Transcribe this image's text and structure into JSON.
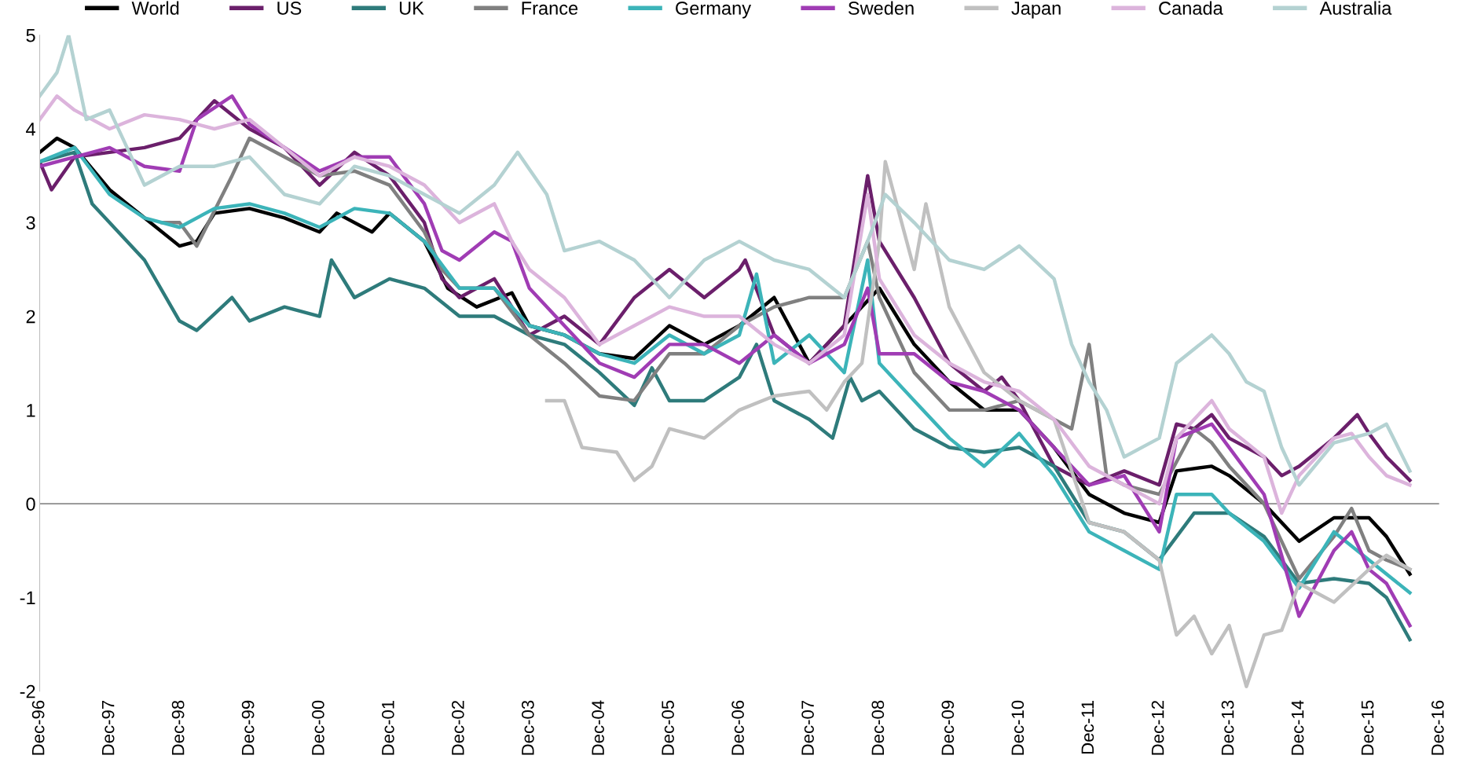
{
  "chart_data": {
    "type": "line",
    "legend": "top",
    "grid": false,
    "line_style": "solid",
    "marker": "none",
    "xlim": [
      "1996-12",
      "2016-12"
    ],
    "xticks": [
      {
        "value": "1996-12",
        "label": "Dec-96"
      },
      {
        "value": "1997-12",
        "label": "Dec-97"
      },
      {
        "value": "1998-12",
        "label": "Dec-98"
      },
      {
        "value": "1999-12",
        "label": "Dec-99"
      },
      {
        "value": "2000-12",
        "label": "Dec-00"
      },
      {
        "value": "2001-12",
        "label": "Dec-01"
      },
      {
        "value": "2002-12",
        "label": "Dec-02"
      },
      {
        "value": "2003-12",
        "label": "Dec-03"
      },
      {
        "value": "2004-12",
        "label": "Dec-04"
      },
      {
        "value": "2005-12",
        "label": "Dec-05"
      },
      {
        "value": "2006-12",
        "label": "Dec-06"
      },
      {
        "value": "2007-12",
        "label": "Dec-07"
      },
      {
        "value": "2008-12",
        "label": "Dec-08"
      },
      {
        "value": "2009-12",
        "label": "Dec-09"
      },
      {
        "value": "2010-12",
        "label": "Dec-10"
      },
      {
        "value": "2011-12",
        "label": "Dec-11"
      },
      {
        "value": "2012-12",
        "label": "Dec-12"
      },
      {
        "value": "2013-12",
        "label": "Dec-13"
      },
      {
        "value": "2014-12",
        "label": "Dec-14"
      },
      {
        "value": "2015-12",
        "label": "Dec-15"
      },
      {
        "value": "2016-12",
        "label": "Dec-16"
      }
    ],
    "ref_lines": [
      {
        "axis": "y",
        "value": 0,
        "color": "#8c8c8c"
      }
    ],
    "ylim": [
      -2,
      5
    ],
    "yticks": [
      -2,
      -1,
      0,
      1,
      2,
      3,
      4,
      5
    ],
    "series": [
      {
        "name": "World",
        "color": "#000000",
        "x": [
          "1996-12",
          "1997-03",
          "1997-06",
          "1997-12",
          "1998-06",
          "1998-12",
          "1999-03",
          "1999-06",
          "1999-12",
          "2000-06",
          "2000-12",
          "2001-03",
          "2001-09",
          "2001-12",
          "2002-06",
          "2002-10",
          "2003-03",
          "2003-09",
          "2003-12",
          "2004-06",
          "2004-12",
          "2005-06",
          "2005-12",
          "2006-06",
          "2006-12",
          "2007-06",
          "2007-12",
          "2008-06",
          "2008-12",
          "2009-06",
          "2009-12",
          "2010-06",
          "2010-12",
          "2011-06",
          "2011-12",
          "2012-06",
          "2012-12",
          "2013-03",
          "2013-09",
          "2013-12",
          "2014-06",
          "2014-12",
          "2015-06",
          "2015-12",
          "2016-03",
          "2016-07"
        ],
        "values": [
          3.75,
          3.9,
          3.8,
          3.35,
          3.05,
          2.75,
          2.8,
          3.1,
          3.15,
          3.05,
          2.9,
          3.1,
          2.9,
          3.1,
          2.8,
          2.3,
          2.1,
          2.25,
          1.9,
          1.8,
          1.6,
          1.55,
          1.9,
          1.7,
          1.9,
          2.2,
          1.5,
          1.9,
          2.3,
          1.7,
          1.3,
          1.0,
          1.0,
          0.6,
          0.1,
          -0.1,
          -0.2,
          0.35,
          0.4,
          0.3,
          0.0,
          -0.4,
          -0.15,
          -0.15,
          -0.35,
          -0.75
        ]
      },
      {
        "name": "US",
        "color": "#6b1f6b",
        "x": [
          "1996-12",
          "1997-02",
          "1997-06",
          "1997-12",
          "1998-06",
          "1998-12",
          "1999-06",
          "1999-12",
          "2000-06",
          "2000-12",
          "2001-06",
          "2001-12",
          "2002-06",
          "2002-09",
          "2002-12",
          "2003-06",
          "2003-12",
          "2004-06",
          "2004-12",
          "2005-06",
          "2005-12",
          "2006-06",
          "2006-12",
          "2007-01",
          "2007-06",
          "2007-12",
          "2008-06",
          "2008-10",
          "2008-12",
          "2009-06",
          "2009-12",
          "2010-06",
          "2010-09",
          "2010-12",
          "2011-06",
          "2011-12",
          "2012-06",
          "2012-12",
          "2013-03",
          "2013-06",
          "2013-09",
          "2013-12",
          "2014-06",
          "2014-09",
          "2014-12",
          "2015-06",
          "2015-10",
          "2015-12",
          "2016-03",
          "2016-07"
        ],
        "values": [
          3.65,
          3.35,
          3.7,
          3.75,
          3.8,
          3.9,
          4.3,
          4.0,
          3.8,
          3.4,
          3.75,
          3.5,
          3.0,
          2.4,
          2.2,
          2.4,
          1.8,
          2.0,
          1.7,
          2.2,
          2.5,
          2.2,
          2.5,
          2.6,
          1.8,
          1.5,
          1.9,
          3.5,
          2.8,
          2.2,
          1.5,
          1.2,
          1.35,
          1.1,
          0.4,
          0.2,
          0.35,
          0.2,
          0.85,
          0.8,
          0.95,
          0.7,
          0.5,
          0.3,
          0.4,
          0.7,
          0.95,
          0.75,
          0.5,
          0.25
        ]
      },
      {
        "name": "UK",
        "color": "#2e7b7b",
        "x": [
          "1996-12",
          "1997-06",
          "1997-09",
          "1998-06",
          "1998-12",
          "1999-03",
          "1999-09",
          "1999-12",
          "2000-06",
          "2000-12",
          "2001-02",
          "2001-06",
          "2001-12",
          "2002-06",
          "2002-12",
          "2003-06",
          "2003-12",
          "2004-06",
          "2004-12",
          "2005-06",
          "2005-09",
          "2005-12",
          "2006-06",
          "2006-12",
          "2007-03",
          "2007-06",
          "2007-12",
          "2008-04",
          "2008-07",
          "2008-09",
          "2008-12",
          "2009-06",
          "2009-12",
          "2010-06",
          "2010-12",
          "2011-06",
          "2011-12",
          "2012-06",
          "2012-12",
          "2013-06",
          "2013-12",
          "2014-06",
          "2014-12",
          "2015-06",
          "2015-12",
          "2016-03",
          "2016-07"
        ],
        "values": [
          3.65,
          3.75,
          3.2,
          2.6,
          1.95,
          1.85,
          2.2,
          1.95,
          2.1,
          2.0,
          2.6,
          2.2,
          2.4,
          2.3,
          2.0,
          2.0,
          1.8,
          1.7,
          1.4,
          1.05,
          1.45,
          1.1,
          1.1,
          1.35,
          1.7,
          1.1,
          0.9,
          0.7,
          1.35,
          1.1,
          1.2,
          0.8,
          0.6,
          0.55,
          0.6,
          0.4,
          -0.2,
          -0.3,
          -0.6,
          -0.1,
          -0.1,
          -0.35,
          -0.85,
          -0.8,
          -0.85,
          -1.0,
          -1.45
        ]
      },
      {
        "name": "France",
        "color": "#808080",
        "x": [
          "1998-09",
          "1998-12",
          "1999-03",
          "1999-09",
          "1999-12",
          "2000-06",
          "2000-12",
          "2001-06",
          "2001-12",
          "2002-06",
          "2002-09",
          "2002-12",
          "2003-06",
          "2003-12",
          "2004-06",
          "2004-12",
          "2005-06",
          "2005-12",
          "2006-06",
          "2006-12",
          "2007-06",
          "2007-12",
          "2008-06",
          "2008-10",
          "2008-12",
          "2009-06",
          "2009-12",
          "2010-06",
          "2010-12",
          "2011-09",
          "2011-12",
          "2012-03",
          "2012-06",
          "2012-12",
          "2013-06",
          "2013-09",
          "2013-12",
          "2014-06",
          "2014-12",
          "2015-06",
          "2015-09",
          "2015-12",
          "2016-03",
          "2016-07"
        ],
        "values": [
          3.0,
          3.0,
          2.75,
          3.5,
          3.9,
          3.7,
          3.5,
          3.55,
          3.4,
          2.9,
          2.5,
          2.3,
          2.3,
          1.8,
          1.5,
          1.15,
          1.1,
          1.6,
          1.6,
          1.9,
          2.1,
          2.2,
          2.2,
          2.8,
          2.2,
          1.4,
          1.0,
          1.0,
          1.1,
          0.8,
          1.7,
          0.3,
          0.2,
          0.1,
          0.8,
          0.65,
          0.4,
          0.0,
          -0.8,
          -0.35,
          -0.05,
          -0.5,
          -0.6,
          -0.7
        ]
      },
      {
        "name": "Germany",
        "color": "#3cb4b9",
        "x": [
          "1996-12",
          "1997-06",
          "1997-12",
          "1998-06",
          "1998-12",
          "1999-06",
          "1999-12",
          "2000-06",
          "2000-12",
          "2001-06",
          "2001-12",
          "2002-06",
          "2002-12",
          "2003-06",
          "2003-12",
          "2004-06",
          "2004-12",
          "2005-06",
          "2005-12",
          "2006-06",
          "2006-12",
          "2007-03",
          "2007-06",
          "2007-12",
          "2008-06",
          "2008-10",
          "2008-12",
          "2009-06",
          "2009-12",
          "2010-06",
          "2010-12",
          "2011-06",
          "2011-12",
          "2012-06",
          "2012-12",
          "2013-03",
          "2013-09",
          "2013-12",
          "2014-06",
          "2014-12",
          "2015-06",
          "2015-12",
          "2016-07"
        ],
        "values": [
          3.65,
          3.8,
          3.3,
          3.05,
          2.95,
          3.15,
          3.2,
          3.1,
          2.95,
          3.15,
          3.1,
          2.8,
          2.3,
          2.3,
          1.9,
          1.8,
          1.6,
          1.5,
          1.8,
          1.6,
          1.8,
          2.45,
          1.5,
          1.8,
          1.4,
          2.6,
          1.5,
          1.1,
          0.7,
          0.4,
          0.75,
          0.3,
          -0.3,
          -0.5,
          -0.7,
          0.1,
          0.1,
          -0.1,
          -0.4,
          -0.9,
          -0.3,
          -0.6,
          -0.95
        ]
      },
      {
        "name": "Sweden",
        "color": "#a03cb4",
        "x": [
          "1996-12",
          "1997-06",
          "1997-12",
          "1998-06",
          "1998-12",
          "1999-03",
          "1999-09",
          "1999-12",
          "2000-06",
          "2000-12",
          "2001-06",
          "2001-12",
          "2002-06",
          "2002-09",
          "2002-12",
          "2003-06",
          "2003-09",
          "2003-12",
          "2004-06",
          "2004-12",
          "2005-06",
          "2005-12",
          "2006-06",
          "2006-12",
          "2007-06",
          "2007-12",
          "2008-06",
          "2008-10",
          "2008-12",
          "2009-06",
          "2009-12",
          "2010-06",
          "2010-12",
          "2011-06",
          "2011-12",
          "2012-06",
          "2012-12",
          "2013-03",
          "2013-09",
          "2013-12",
          "2014-06",
          "2014-12",
          "2015-06",
          "2015-09",
          "2015-12",
          "2016-03",
          "2016-07"
        ],
        "values": [
          3.6,
          3.7,
          3.8,
          3.6,
          3.55,
          4.1,
          4.35,
          4.05,
          3.8,
          3.55,
          3.7,
          3.7,
          3.2,
          2.7,
          2.6,
          2.9,
          2.8,
          2.3,
          1.9,
          1.5,
          1.35,
          1.7,
          1.7,
          1.5,
          1.8,
          1.5,
          1.7,
          2.3,
          1.6,
          1.6,
          1.3,
          1.2,
          1.0,
          0.6,
          0.2,
          0.3,
          -0.3,
          0.7,
          0.85,
          0.6,
          0.1,
          -1.2,
          -0.5,
          -0.3,
          -0.7,
          -0.85,
          -1.3
        ]
      },
      {
        "name": "Japan",
        "color": "#c0c0c0",
        "x": [
          "2004-03",
          "2004-06",
          "2004-09",
          "2005-03",
          "2005-06",
          "2005-09",
          "2005-12",
          "2006-06",
          "2006-12",
          "2007-06",
          "2007-12",
          "2008-03",
          "2008-06",
          "2008-09",
          "2008-12",
          "2009-01",
          "2009-06",
          "2009-08",
          "2009-12",
          "2010-06",
          "2010-12",
          "2011-06",
          "2011-12",
          "2012-06",
          "2012-12",
          "2013-03",
          "2013-06",
          "2013-09",
          "2013-12",
          "2014-03",
          "2014-06",
          "2014-09",
          "2014-12",
          "2015-06",
          "2015-12",
          "2016-03",
          "2016-07"
        ],
        "values": [
          1.1,
          1.1,
          0.6,
          0.55,
          0.25,
          0.4,
          0.8,
          0.7,
          1.0,
          1.15,
          1.2,
          1.0,
          1.3,
          1.5,
          2.8,
          3.65,
          2.5,
          3.2,
          2.1,
          1.4,
          1.1,
          0.9,
          -0.2,
          -0.3,
          -0.6,
          -1.4,
          -1.2,
          -1.6,
          -1.3,
          -1.95,
          -1.4,
          -1.35,
          -0.85,
          -1.05,
          -0.7,
          -0.55,
          -0.7
        ]
      },
      {
        "name": "Canada",
        "color": "#dcb4dc",
        "x": [
          "1996-12",
          "1997-03",
          "1997-06",
          "1997-12",
          "1998-06",
          "1998-12",
          "1999-06",
          "1999-12",
          "2000-06",
          "2000-12",
          "2001-06",
          "2001-12",
          "2002-06",
          "2002-12",
          "2003-06",
          "2003-09",
          "2003-12",
          "2004-06",
          "2004-12",
          "2005-06",
          "2005-12",
          "2006-06",
          "2006-12",
          "2007-06",
          "2007-12",
          "2008-06",
          "2008-10",
          "2008-12",
          "2009-06",
          "2009-12",
          "2010-06",
          "2010-12",
          "2011-06",
          "2011-12",
          "2012-06",
          "2012-12",
          "2013-03",
          "2013-09",
          "2013-12",
          "2014-06",
          "2014-09",
          "2014-12",
          "2015-06",
          "2015-09",
          "2015-12",
          "2016-03",
          "2016-07"
        ],
        "values": [
          4.1,
          4.35,
          4.2,
          4.0,
          4.15,
          4.1,
          4.0,
          4.1,
          3.8,
          3.5,
          3.7,
          3.6,
          3.4,
          3.0,
          3.2,
          2.8,
          2.5,
          2.2,
          1.7,
          1.9,
          2.1,
          2.0,
          2.0,
          1.7,
          1.5,
          1.8,
          3.3,
          2.4,
          1.8,
          1.5,
          1.3,
          1.2,
          0.9,
          0.4,
          0.2,
          0.0,
          0.7,
          1.1,
          0.8,
          0.5,
          -0.1,
          0.3,
          0.7,
          0.75,
          0.5,
          0.3,
          0.2
        ]
      },
      {
        "name": "Australia",
        "color": "#b4d2d2",
        "x": [
          "1996-12",
          "1997-03",
          "1997-05",
          "1997-08",
          "1997-12",
          "1998-06",
          "1998-12",
          "1999-06",
          "1999-12",
          "2000-06",
          "2000-12",
          "2001-06",
          "2001-12",
          "2002-06",
          "2002-12",
          "2003-06",
          "2003-10",
          "2004-03",
          "2004-06",
          "2004-12",
          "2005-06",
          "2005-12",
          "2006-06",
          "2006-12",
          "2007-06",
          "2007-12",
          "2008-06",
          "2008-10",
          "2009-01",
          "2009-06",
          "2009-12",
          "2010-06",
          "2010-12",
          "2011-06",
          "2011-09",
          "2011-12",
          "2012-03",
          "2012-06",
          "2012-12",
          "2013-03",
          "2013-09",
          "2013-12",
          "2014-03",
          "2014-06",
          "2014-09",
          "2014-12",
          "2015-06",
          "2015-12",
          "2016-03",
          "2016-07"
        ],
        "values": [
          4.35,
          4.6,
          5.0,
          4.1,
          4.2,
          3.4,
          3.6,
          3.6,
          3.7,
          3.3,
          3.2,
          3.6,
          3.5,
          3.3,
          3.1,
          3.4,
          3.75,
          3.3,
          2.7,
          2.8,
          2.6,
          2.2,
          2.6,
          2.8,
          2.6,
          2.5,
          2.2,
          2.8,
          3.3,
          3.0,
          2.6,
          2.5,
          2.75,
          2.4,
          1.7,
          1.3,
          1.0,
          0.5,
          0.7,
          1.5,
          1.8,
          1.6,
          1.3,
          1.2,
          0.6,
          0.2,
          0.65,
          0.75,
          0.85,
          0.35
        ]
      }
    ]
  }
}
